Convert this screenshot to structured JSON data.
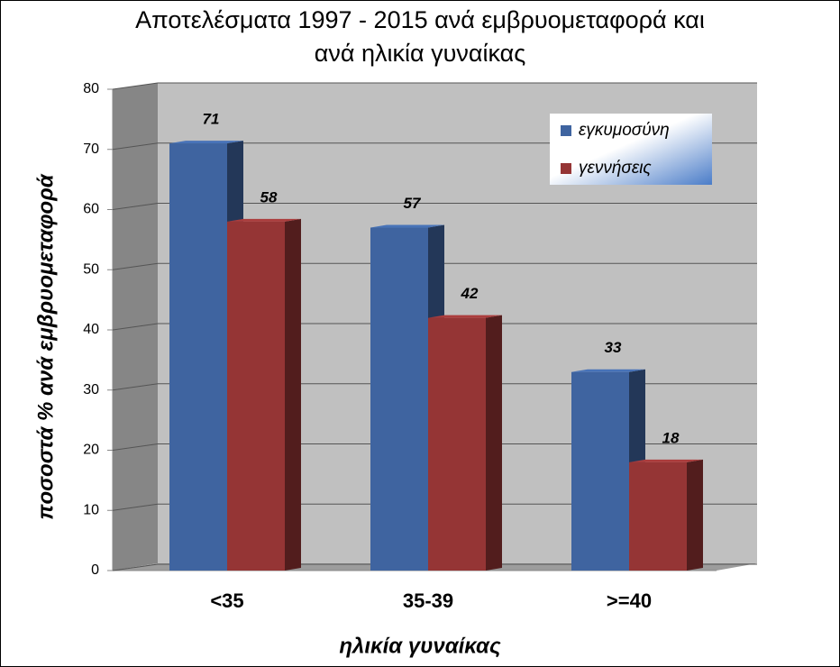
{
  "chart_data": {
    "type": "bar",
    "title": [
      "Αποτελέσματα 1997 - 2015 ανά εμβρυομεταφορά και",
      "ανά ηλικία γυναίκας"
    ],
    "x_label": "ηλικία γυναίκας",
    "y_label": "ποσοστά % ανά εμβρυομεταφορά",
    "categories": [
      "<35",
      "35-39",
      ">=40"
    ],
    "series": [
      {
        "name": "εγκυμοσύνη",
        "color": "#3f64a0",
        "values": [
          71,
          57,
          33
        ]
      },
      {
        "name": "γεννήσεις",
        "color": "#953535",
        "values": [
          58,
          42,
          18
        ]
      }
    ],
    "ylim": [
      0,
      80
    ],
    "yticks": [
      0,
      10,
      20,
      30,
      40,
      50,
      60,
      70,
      80
    ],
    "grid": true,
    "legend": "upper right"
  }
}
